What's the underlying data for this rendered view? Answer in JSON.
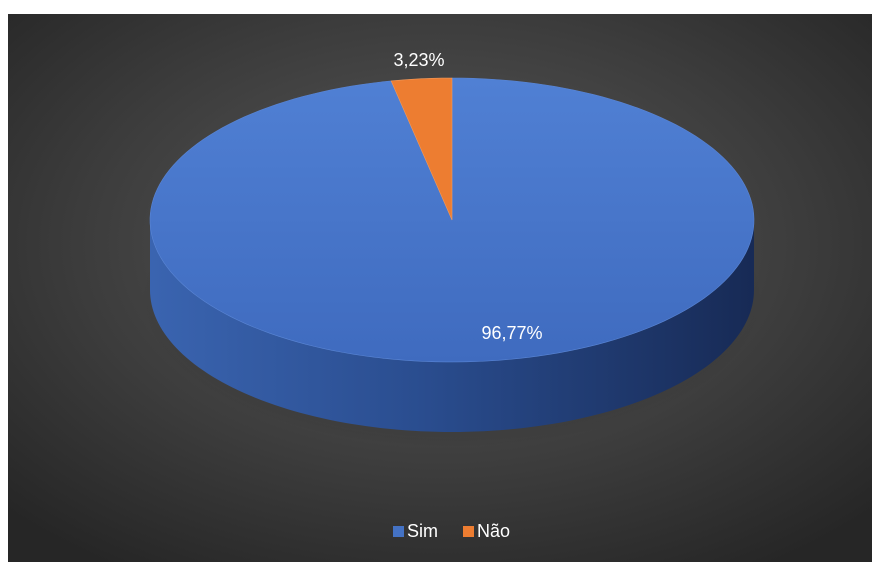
{
  "chart_data": {
    "type": "pie",
    "style": "3d",
    "categories": [
      "Sim",
      "Não"
    ],
    "values": [
      96.77,
      3.23
    ],
    "data_labels": [
      "96,77%",
      "3,23%"
    ],
    "title": "",
    "legend": "bottom",
    "colors": {
      "Sim": "#4472C4",
      "Não": "#ED7D31",
      "background": "#404040",
      "text": "#FFFFFF"
    }
  }
}
